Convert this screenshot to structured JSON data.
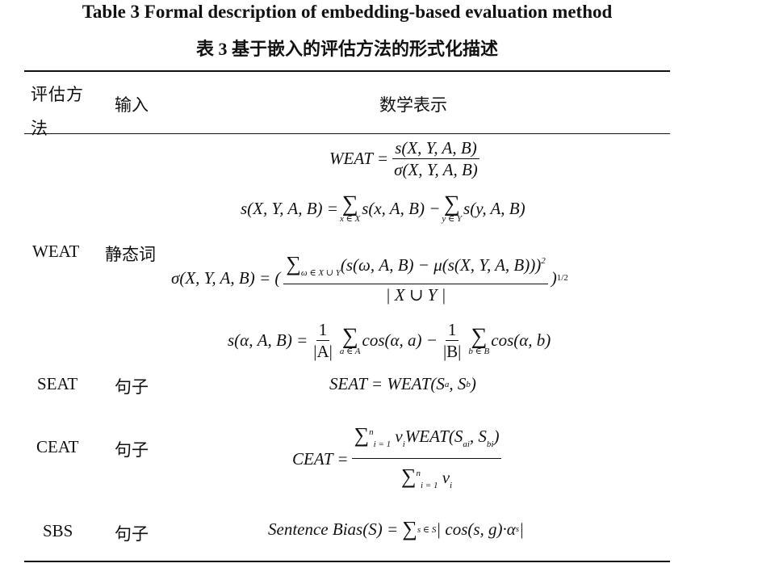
{
  "title_en": "Table 3    Formal description of embedding-based evaluation method",
  "title_zh": "表 3    基于嵌入的评估方法的形式化描述",
  "headers": {
    "method": "评估方法",
    "input": "输入",
    "math": "数学表示"
  },
  "rows": [
    {
      "method": "WEAT",
      "input": "静态词"
    },
    {
      "method": "SEAT",
      "input": "句子"
    },
    {
      "method": "CEAT",
      "input": "句子"
    },
    {
      "method": "SBS",
      "input": "句子"
    }
  ],
  "formulas": {
    "weat_lhs": "WEAT =",
    "weat_num": "s(X, Y, A, B)",
    "weat_den": "σ(X, Y, A, B)",
    "s_lhs": "s(X, Y, A, B) =",
    "s_t1": "s(x, A, B) −",
    "s_sub1": "x ∈ X",
    "s_t2": "s(y, A, B)",
    "s_sub2": "y ∈ Y",
    "sig_lhs": "σ(X, Y, A, B) = (",
    "sig_num": "(s(ω, A, B) − μ(s(X, Y, A, B)))",
    "sig_num_sub": "ω ∈ X ∪ Y",
    "sig_num_sup": "2",
    "sig_den": "| X ∪ Y |",
    "sig_close": ")",
    "sig_exp": "1/2",
    "sa_lhs": "s(α, A, B) =",
    "sa_f1n": "1",
    "sa_f1d": "|A|",
    "sa_sub1": "a ∈ A",
    "sa_t1": "cos(α, a) −",
    "sa_f2n": "1",
    "sa_f2d": "|B|",
    "sa_sub2": "b ∈ B",
    "sa_t2": "cos(α, b)",
    "seat": "SEAT = WEAT(S",
    "seat_a": "a",
    "seat_mid": ", S",
    "seat_b": "b",
    "seat_end": ")",
    "ceat_lhs": "CEAT =",
    "ceat_num": "v",
    "ceat_num_i": "i",
    "ceat_num_rest": "WEAT(S",
    "ceat_ai": "ai",
    "ceat_comma": ", S",
    "ceat_bi": "bi",
    "ceat_close": ")",
    "ceat_lim_top": "n",
    "ceat_lim_bot": "i = 1",
    "ceat_den": "v",
    "ceat_den_i": "i",
    "sbs": "Sentence Bias(S) =",
    "sbs_sub": "s ∈ S",
    "sbs_body": "| cos(s, g)·α",
    "sbs_s": "s",
    "sbs_end": " |"
  },
  "sum_symbol": "∑"
}
